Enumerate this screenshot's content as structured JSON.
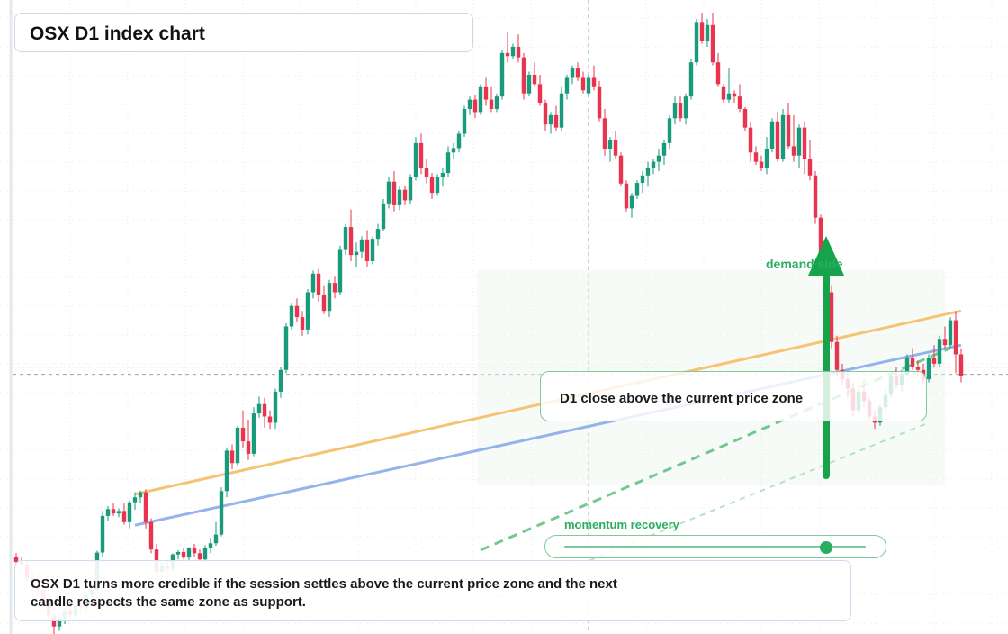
{
  "title": "OSX D1 index chart",
  "annotations": {
    "signal": "D1 close above the current price zone",
    "demand": "demand side",
    "momentum": "momentum recovery",
    "momentum_level": 0.87,
    "note": "OSX D1 turns more credible if the session settles above the current price zone and the next candle respects the same zone as support."
  },
  "colors": {
    "up": "#1a9a7c",
    "down": "#e8344e",
    "accent": "#27ae60",
    "resistance_line": "#f5c16c",
    "support_line": "#8fb0ea",
    "grid": "#e4e8ef"
  },
  "chart_data": {
    "type": "candlestick",
    "title": "OSX D1 index chart",
    "xlabel": "",
    "ylabel": "",
    "grid": true,
    "legend": "none",
    "xlim": [
      0,
      180
    ],
    "ylim": [
      0,
      100
    ],
    "candles": [
      [
        0,
        12.4,
        13.0,
        10.5,
        11.6
      ],
      [
        1,
        11.6,
        12.3,
        10.8,
        11.2
      ],
      [
        2,
        11.2,
        11.8,
        8.5,
        9.0
      ],
      [
        3,
        9.0,
        10.0,
        6.7,
        7.8
      ],
      [
        4,
        7.8,
        9.5,
        6.0,
        7.1
      ],
      [
        5,
        7.1,
        7.8,
        4.4,
        5.0
      ],
      [
        6,
        5.0,
        5.7,
        2.5,
        3.0
      ],
      [
        7,
        3.0,
        3.4,
        0.0,
        1.2
      ],
      [
        8,
        1.2,
        2.8,
        0.5,
        2.5
      ],
      [
        9,
        2.5,
        4.2,
        1.6,
        3.8
      ],
      [
        10,
        3.8,
        4.9,
        2.2,
        3.0
      ],
      [
        11,
        3.0,
        4.8,
        2.6,
        4.5
      ],
      [
        12,
        4.5,
        5.4,
        3.8,
        4.3
      ],
      [
        13,
        4.3,
        6.8,
        3.7,
        6.3
      ],
      [
        14,
        6.3,
        7.5,
        5.9,
        7.1
      ],
      [
        15,
        7.1,
        13.4,
        6.8,
        13.1
      ],
      [
        16,
        13.1,
        19.8,
        12.5,
        19.0
      ],
      [
        17,
        19.0,
        20.6,
        18.2,
        20.1
      ],
      [
        18,
        20.1,
        21.0,
        19.0,
        19.4
      ],
      [
        19,
        19.4,
        20.2,
        18.8,
        19.8
      ],
      [
        20,
        19.8,
        21.0,
        17.6,
        18.0
      ],
      [
        21,
        18.0,
        21.5,
        17.0,
        21.2
      ],
      [
        22,
        21.2,
        22.8,
        20.0,
        22.0
      ],
      [
        23,
        22.0,
        23.1,
        21.0,
        22.8
      ],
      [
        24,
        22.8,
        23.3,
        17.0,
        18.0
      ],
      [
        25,
        18.0,
        18.6,
        13.0,
        13.6
      ],
      [
        26,
        13.6,
        14.5,
        9.4,
        10.0
      ],
      [
        27,
        10.0,
        11.5,
        9.0,
        11.0
      ],
      [
        28,
        11.0,
        11.7,
        9.8,
        10.5
      ],
      [
        29,
        10.5,
        13.0,
        10.1,
        12.8
      ],
      [
        30,
        12.8,
        13.5,
        12.0,
        13.2
      ],
      [
        31,
        13.2,
        13.8,
        12.0,
        12.3
      ],
      [
        32,
        12.3,
        14.0,
        11.5,
        13.8
      ],
      [
        33,
        13.8,
        14.5,
        12.4,
        13.0
      ],
      [
        34,
        13.0,
        13.6,
        11.5,
        12.0
      ],
      [
        35,
        12.0,
        14.3,
        11.6,
        13.9
      ],
      [
        36,
        13.9,
        15.5,
        13.0,
        14.6
      ],
      [
        37,
        14.6,
        18.0,
        14.2,
        16.0
      ],
      [
        38,
        16.0,
        23.6,
        15.7,
        23.0
      ],
      [
        39,
        23.0,
        30.0,
        22.0,
        29.5
      ],
      [
        40,
        29.5,
        30.5,
        26.5,
        27.5
      ],
      [
        41,
        27.5,
        33.5,
        27.0,
        33.2
      ],
      [
        42,
        33.2,
        36.0,
        30.0,
        31.0
      ],
      [
        43,
        31.0,
        34.5,
        28.0,
        29.0
      ],
      [
        44,
        29.0,
        36.5,
        28.6,
        35.5
      ],
      [
        45,
        35.5,
        38.2,
        34.8,
        37.0
      ],
      [
        46,
        37.0,
        38.0,
        33.2,
        35.0
      ],
      [
        47,
        35.0,
        36.0,
        33.0,
        34.0
      ],
      [
        48,
        34.0,
        39.5,
        33.0,
        39.0
      ],
      [
        49,
        39.0,
        43.0,
        38.0,
        42.5
      ],
      [
        50,
        42.5,
        50.0,
        42.0,
        49.5
      ],
      [
        51,
        49.5,
        53.2,
        49.0,
        52.8
      ],
      [
        52,
        52.8,
        54.0,
        50.2,
        51.0
      ],
      [
        53,
        51.0,
        52.0,
        48.0,
        49.0
      ],
      [
        54,
        49.0,
        55.5,
        48.2,
        55.0
      ],
      [
        55,
        55.0,
        58.5,
        54.0,
        58.0
      ],
      [
        56,
        58.0,
        58.8,
        53.5,
        54.5
      ],
      [
        57,
        54.5,
        56.0,
        51.5,
        52.0
      ],
      [
        58,
        52.0,
        57.0,
        51.0,
        56.5
      ],
      [
        59,
        56.5,
        57.5,
        54.0,
        55.0
      ],
      [
        60,
        55.0,
        62.5,
        54.5,
        61.8
      ],
      [
        61,
        61.8,
        66.0,
        61.0,
        65.5
      ],
      [
        62,
        65.5,
        68.3,
        60.0,
        61.0
      ],
      [
        63,
        61.0,
        63.0,
        59.0,
        61.5
      ],
      [
        64,
        61.5,
        64.0,
        60.5,
        63.5
      ],
      [
        65,
        63.5,
        65.0,
        59.0,
        60.0
      ],
      [
        66,
        60.0,
        64.0,
        59.5,
        63.6
      ],
      [
        67,
        63.6,
        66.0,
        62.5,
        65.2
      ],
      [
        68,
        65.2,
        70.0,
        64.8,
        69.3
      ],
      [
        69,
        69.3,
        73.5,
        68.5,
        72.8
      ],
      [
        70,
        72.8,
        74.5,
        68.0,
        69.0
      ],
      [
        71,
        69.0,
        72.0,
        68.2,
        71.5
      ],
      [
        72,
        71.5,
        72.2,
        69.0,
        69.8
      ],
      [
        73,
        69.8,
        74.0,
        69.2,
        73.6
      ],
      [
        74,
        73.6,
        80.0,
        73.0,
        79.0
      ],
      [
        75,
        79.0,
        80.5,
        74.0,
        75.0
      ],
      [
        76,
        75.0,
        76.5,
        72.5,
        73.5
      ],
      [
        77,
        73.5,
        74.2,
        70.0,
        71.0
      ],
      [
        78,
        71.0,
        74.0,
        70.5,
        73.5
      ],
      [
        79,
        73.5,
        75.0,
        72.0,
        74.2
      ],
      [
        80,
        74.2,
        78.5,
        73.5,
        77.5
      ],
      [
        81,
        77.5,
        79.0,
        76.5,
        78.2
      ],
      [
        82,
        78.2,
        81.0,
        77.5,
        80.5
      ],
      [
        83,
        80.5,
        85.0,
        80.0,
        84.5
      ],
      [
        84,
        84.5,
        86.5,
        83.5,
        86.0
      ],
      [
        85,
        86.0,
        86.8,
        83.0,
        84.0
      ],
      [
        86,
        84.0,
        88.5,
        83.5,
        88.0
      ],
      [
        87,
        88.0,
        89.5,
        85.0,
        86.0
      ],
      [
        88,
        86.0,
        88.0,
        84.0,
        84.5
      ],
      [
        89,
        84.5,
        87.0,
        84.0,
        86.5
      ],
      [
        90,
        86.5,
        94.0,
        86.0,
        93.5
      ],
      [
        91,
        93.5,
        96.8,
        92.0,
        93.0
      ],
      [
        92,
        93.0,
        95.0,
        92.5,
        94.5
      ],
      [
        93,
        94.5,
        96.5,
        92.0,
        92.8
      ],
      [
        94,
        92.8,
        93.5,
        86.0,
        87.0
      ],
      [
        95,
        87.0,
        90.5,
        86.5,
        90.0
      ],
      [
        96,
        90.0,
        92.0,
        88.0,
        88.5
      ],
      [
        97,
        88.5,
        90.0,
        85.0,
        85.5
      ],
      [
        98,
        85.5,
        86.0,
        81.0,
        82.0
      ],
      [
        99,
        82.0,
        84.0,
        80.5,
        83.5
      ],
      [
        100,
        83.5,
        85.0,
        81.0,
        81.5
      ],
      [
        101,
        81.5,
        88.0,
        81.0,
        87.0
      ],
      [
        102,
        87.0,
        90.0,
        86.0,
        89.5
      ],
      [
        103,
        89.5,
        91.5,
        88.5,
        91.0
      ],
      [
        104,
        91.0,
        92.0,
        89.0,
        89.5
      ],
      [
        105,
        89.5,
        90.5,
        87.0,
        87.5
      ],
      [
        106,
        87.0,
        90.0,
        86.5,
        89.5
      ],
      [
        107,
        89.5,
        91.5,
        87.5,
        88.0
      ],
      [
        108,
        88.0,
        89.0,
        82.5,
        83.0
      ],
      [
        109,
        83.0,
        84.5,
        77.0,
        78.0
      ],
      [
        110,
        78.0,
        80.0,
        76.0,
        79.5
      ],
      [
        111,
        79.5,
        81.0,
        76.5,
        77.0
      ],
      [
        112,
        77.0,
        77.5,
        72.0,
        72.5
      ],
      [
        113,
        72.5,
        73.0,
        68.0,
        68.5
      ],
      [
        114,
        68.5,
        71.0,
        67.0,
        70.5
      ],
      [
        115,
        70.5,
        73.0,
        70.0,
        72.6
      ],
      [
        116,
        72.6,
        74.5,
        71.0,
        73.8
      ],
      [
        117,
        73.8,
        76.0,
        72.0,
        75.0
      ],
      [
        118,
        75.0,
        76.5,
        74.0,
        76.0
      ],
      [
        119,
        76.0,
        78.0,
        74.5,
        77.0
      ],
      [
        120,
        77.0,
        79.5,
        75.5,
        79.0
      ],
      [
        121,
        79.0,
        83.5,
        78.0,
        83.0
      ],
      [
        122,
        83.0,
        86.5,
        82.0,
        85.5
      ],
      [
        123,
        85.5,
        86.5,
        82.5,
        83.0
      ],
      [
        124,
        83.0,
        87.0,
        82.0,
        86.5
      ],
      [
        125,
        86.5,
        92.5,
        86.0,
        92.0
      ],
      [
        126,
        92.0,
        99.0,
        91.5,
        98.5
      ],
      [
        127,
        98.5,
        100.0,
        95.0,
        95.5
      ],
      [
        128,
        95.5,
        99.0,
        94.5,
        98.0
      ],
      [
        129,
        98.0,
        100.0,
        91.5,
        92.0
      ],
      [
        130,
        92.0,
        93.5,
        88.0,
        88.5
      ],
      [
        131,
        88.0,
        88.5,
        85.5,
        86.0
      ],
      [
        132,
        86.0,
        91.0,
        85.5,
        87.0
      ],
      [
        133,
        87.0,
        87.5,
        85.5,
        86.5
      ],
      [
        134,
        86.5,
        88.5,
        84.0,
        84.5
      ],
      [
        135,
        84.5,
        84.8,
        81.0,
        81.5
      ],
      [
        136,
        81.5,
        82.5,
        76.0,
        77.5
      ],
      [
        137,
        77.5,
        78.5,
        75.5,
        76.0
      ],
      [
        138,
        76.0,
        77.0,
        74.5,
        75.0
      ],
      [
        139,
        75.0,
        80.0,
        74.0,
        78.0
      ],
      [
        140,
        78.0,
        83.0,
        77.5,
        82.5
      ],
      [
        141,
        82.5,
        84.0,
        76.0,
        76.5
      ],
      [
        142,
        76.5,
        84.5,
        76.0,
        83.5
      ],
      [
        143,
        83.5,
        85.5,
        78.0,
        78.5
      ],
      [
        144,
        78.5,
        83.5,
        76.0,
        77.0
      ],
      [
        145,
        77.0,
        82.0,
        75.0,
        81.5
      ],
      [
        146,
        81.5,
        82.5,
        74.0,
        76.5
      ],
      [
        147,
        76.5,
        79.5,
        73.0,
        73.8
      ],
      [
        148,
        73.8,
        74.5,
        66.0,
        67.0
      ],
      [
        149,
        67.0,
        67.5,
        60.0,
        60.5
      ],
      [
        150,
        60.5,
        61.0,
        54.5,
        55.0
      ],
      [
        151,
        55.0,
        56.0,
        46.0,
        47.0
      ],
      [
        152,
        47.0,
        48.0,
        41.5,
        42.5
      ],
      [
        153,
        42.5,
        43.5,
        40.0,
        41.0
      ],
      [
        154,
        41.0,
        42.0,
        38.0,
        39.5
      ],
      [
        155,
        39.5,
        40.5,
        35.0,
        36.0
      ],
      [
        156,
        36.0,
        40.0,
        35.5,
        39.0
      ],
      [
        157,
        39.0,
        41.0,
        36.5,
        37.5
      ],
      [
        158,
        37.5,
        38.0,
        34.5,
        35.0
      ],
      [
        159,
        35.0,
        36.0,
        33.0,
        34.0
      ],
      [
        160,
        34.0,
        37.0,
        33.5,
        36.5
      ],
      [
        161,
        36.5,
        39.5,
        36.0,
        38.5
      ],
      [
        162,
        38.5,
        42.0,
        38.0,
        41.5
      ],
      [
        163,
        41.5,
        43.0,
        39.5,
        40.0
      ],
      [
        164,
        40.0,
        42.5,
        39.0,
        41.8
      ],
      [
        165,
        41.8,
        45.0,
        41.5,
        44.5
      ],
      [
        166,
        44.5,
        46.0,
        42.5,
        43.0
      ],
      [
        167,
        43.0,
        44.0,
        41.5,
        42.5
      ],
      [
        168,
        42.5,
        43.5,
        40.0,
        41.0
      ],
      [
        169,
        41.0,
        45.0,
        40.5,
        44.5
      ],
      [
        170,
        44.5,
        46.5,
        43.0,
        43.5
      ],
      [
        171,
        43.5,
        48.0,
        43.0,
        47.5
      ],
      [
        172,
        47.5,
        49.5,
        46.0,
        46.5
      ],
      [
        173,
        46.5,
        51.0,
        46.0,
        50.5
      ],
      [
        174,
        50.5,
        52.0,
        42.0,
        45.0
      ],
      [
        175,
        45.0,
        46.0,
        40.5,
        41.5
      ]
    ],
    "lines": [
      {
        "from": [
          22,
          22.5
        ],
        "to": [
          175,
          52.0
        ]
      },
      {
        "from": [
          22,
          17.5
        ],
        "to": [
          175,
          46.5
        ]
      },
      {
        "from": [
          86,
          13.5
        ],
        "to": [
          173,
          46.0
        ],
        "style": "dashed"
      },
      {
        "from": [
          84,
          4.0
        ],
        "to": [
          169,
          34.0
        ],
        "style": "dashed",
        "faint": true
      }
    ],
    "reference_price": 41.8
  }
}
